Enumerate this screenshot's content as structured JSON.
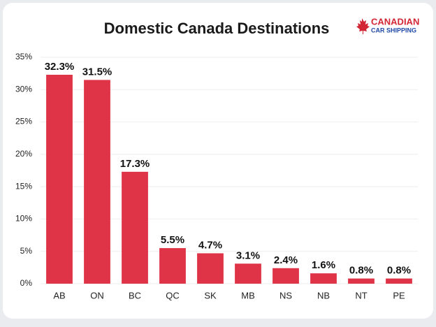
{
  "chart_data": {
    "type": "bar",
    "title": "Domestic Canada Destinations",
    "logo_text": "CANADIAN",
    "logo_subtext": "CAR SHIPPING",
    "categories": [
      "AB",
      "ON",
      "BC",
      "QC",
      "SK",
      "MB",
      "NS",
      "NB",
      "NT",
      "PE"
    ],
    "values": [
      32.3,
      31.5,
      17.3,
      5.5,
      4.7,
      3.1,
      2.4,
      1.6,
      0.8,
      0.8
    ],
    "value_labels": [
      "32.3%",
      "31.5%",
      "17.3%",
      "5.5%",
      "4.7%",
      "3.1%",
      "2.4%",
      "1.6%",
      "0.8%",
      "0.8%"
    ],
    "color": "#df3447",
    "ylim": [
      0,
      35
    ],
    "yticks": [
      {
        "value": 0,
        "label": "0%"
      },
      {
        "value": 5,
        "label": "5%"
      },
      {
        "value": 10,
        "label": "10%"
      },
      {
        "value": 15,
        "label": "15%"
      },
      {
        "value": 20,
        "label": "20%"
      },
      {
        "value": 25,
        "label": "25%"
      },
      {
        "value": 30,
        "label": "30%"
      },
      {
        "value": 35,
        "label": "35%"
      }
    ],
    "grid": true
  }
}
